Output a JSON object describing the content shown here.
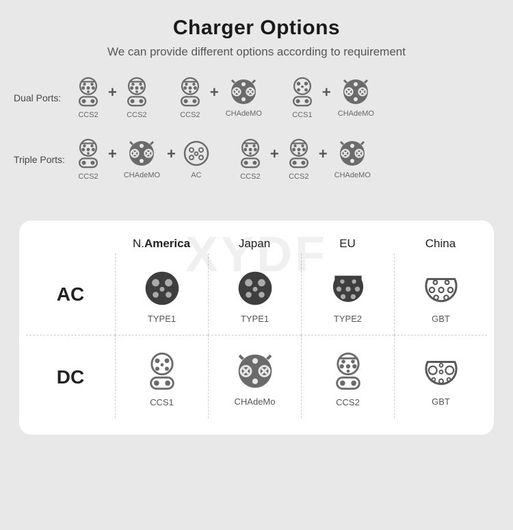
{
  "header": {
    "title": "Charger Options",
    "subtitle": "We can provide different options according to requirement"
  },
  "watermark": "XYDF",
  "ports": {
    "dual": {
      "label": "Dual Ports:",
      "combos": [
        [
          {
            "icon": "ccs2",
            "label": "CCS2"
          },
          {
            "icon": "ccs2",
            "label": "CCS2"
          }
        ],
        [
          {
            "icon": "ccs2",
            "label": "CCS2"
          },
          {
            "icon": "chademo",
            "label": "CHAdeMO"
          }
        ],
        [
          {
            "icon": "ccs1",
            "label": "CCS1"
          },
          {
            "icon": "chademo",
            "label": "CHAdeMO"
          }
        ]
      ]
    },
    "triple": {
      "label": "Triple Ports:",
      "combos": [
        [
          {
            "icon": "ccs2",
            "label": "CCS2"
          },
          {
            "icon": "chademo",
            "label": "CHAdeMO"
          },
          {
            "icon": "ac",
            "label": "AC"
          }
        ],
        [
          {
            "icon": "ccs2",
            "label": "CCS2"
          },
          {
            "icon": "ccs2",
            "label": "CCS2"
          },
          {
            "icon": "chademo",
            "label": "CHAdeMO"
          }
        ]
      ]
    }
  },
  "table": {
    "regions": [
      {
        "key": "namerica",
        "label": "N.America",
        "bold_part": "America"
      },
      {
        "key": "japan",
        "label": "Japan"
      },
      {
        "key": "eu",
        "label": "EU"
      },
      {
        "key": "china",
        "label": "China"
      }
    ],
    "rows": [
      {
        "key": "ac",
        "label": "AC",
        "cells": [
          {
            "icon": "type1",
            "label": "TYPE1"
          },
          {
            "icon": "type1",
            "label": "TYPE1"
          },
          {
            "icon": "type2",
            "label": "TYPE2"
          },
          {
            "icon": "gbt",
            "label": "GBT"
          }
        ]
      },
      {
        "key": "dc",
        "label": "DC",
        "cells": [
          {
            "icon": "ccs1",
            "label": "CCS1"
          },
          {
            "icon": "chademo",
            "label": "CHAdeMo"
          },
          {
            "icon": "ccs2",
            "label": "CCS2"
          },
          {
            "icon": "gbt-dc",
            "label": "GBT"
          }
        ]
      }
    ]
  },
  "colors": {
    "bg": "#e8e8e8",
    "card": "#ffffff",
    "iconStroke": "#5a5a5a",
    "iconFill": "#6b6b6b",
    "iconDark": "#3a3a3a",
    "text": "#333333",
    "label": "#666666",
    "divider": "#cccccc"
  }
}
